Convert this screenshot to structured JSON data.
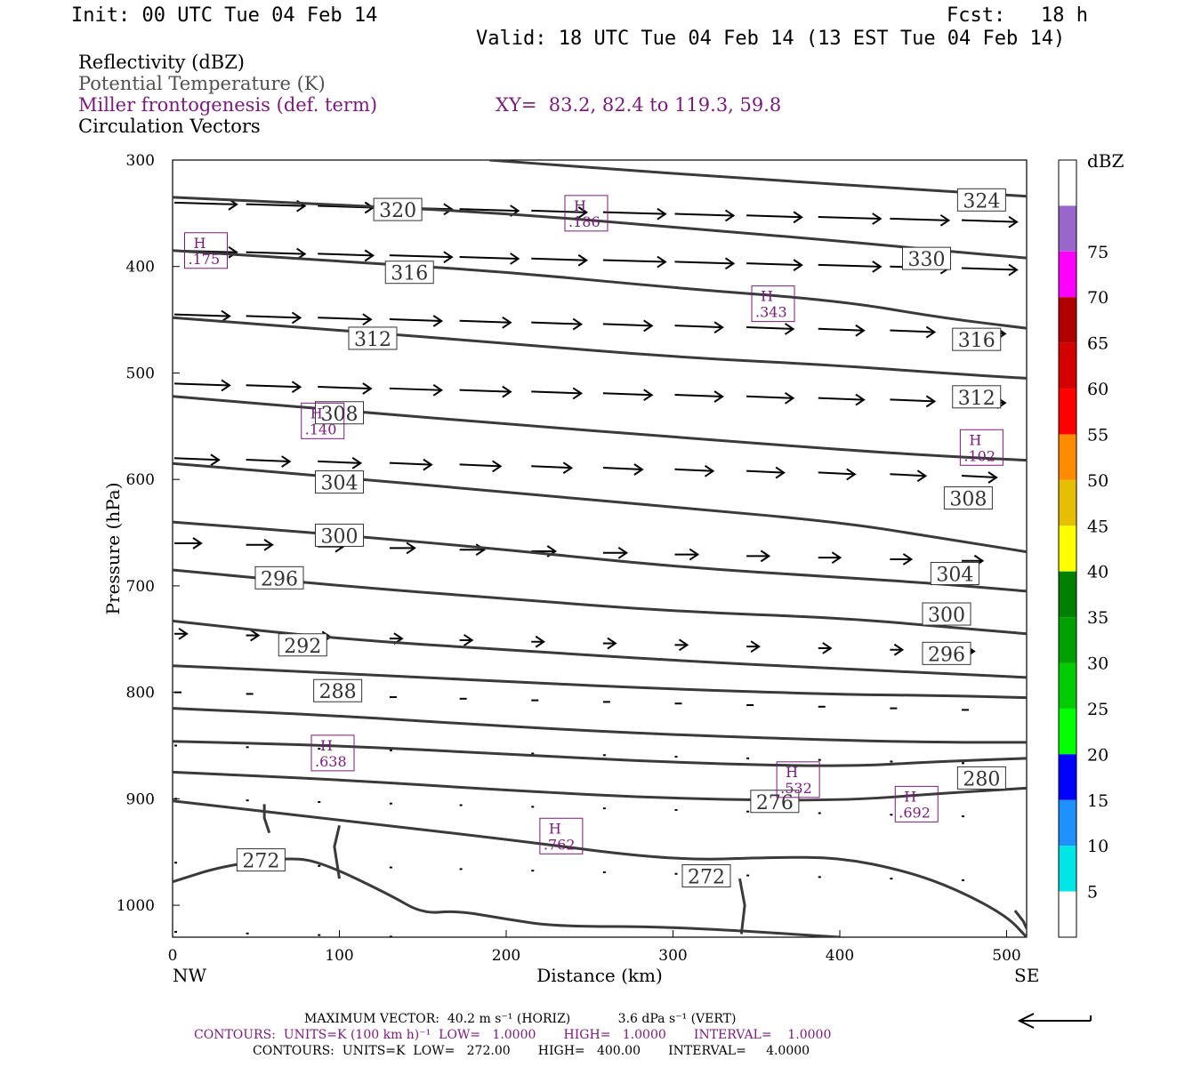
{
  "header": {
    "init": "Init: 00 UTC Tue 04 Feb 14",
    "fcst": "Fcst:   18 h",
    "valid": "Valid: 18 UTC Tue 04 Feb 14 (13 EST Tue 04 Feb 14)"
  },
  "fields": {
    "reflectivity": "Reflectivity (dBZ)",
    "theta": "Potential Temperature (K)",
    "frontogenesis": "Miller frontogenesis (def. term)",
    "xy": "XY=  83.2, 82.4 to 119.3, 59.8",
    "vectors": "Circulation Vectors"
  },
  "colors": {
    "theta_contour": "#3a3a3a",
    "frontogenesis": "#7a1a7a",
    "vector": "#000000"
  },
  "chart_data": {
    "type": "line",
    "xlabel": "Distance (km)",
    "ylabel": "Pressure (hPa)",
    "xlim": [
      0,
      512
    ],
    "ylim": [
      1030,
      300
    ],
    "y_scale": "linear",
    "x_ticks": [
      0,
      100,
      200,
      300,
      400,
      500
    ],
    "y_ticks": [
      300,
      400,
      500,
      600,
      700,
      800,
      900,
      1000
    ],
    "x_end_labels": {
      "left": "NW",
      "right": "SE"
    },
    "theta_contours": [
      {
        "value": 324,
        "points": [
          [
            190,
            300
          ],
          [
            250,
            307
          ],
          [
            350,
            318
          ],
          [
            450,
            328
          ],
          [
            512,
            334
          ]
        ],
        "labels": [
          [
            485,
            337
          ]
        ]
      },
      {
        "value": 320,
        "points": [
          [
            0,
            335
          ],
          [
            100,
            342
          ],
          [
            200,
            350
          ],
          [
            300,
            363
          ],
          [
            400,
            376
          ],
          [
            460,
            385
          ],
          [
            512,
            392
          ]
        ],
        "labels": [
          [
            135,
            346
          ]
        ]
      },
      {
        "value": 330,
        "points": [
          [
            0,
            385
          ],
          [
            100,
            395
          ],
          [
            200,
            405
          ],
          [
            300,
            420
          ],
          [
            400,
            432
          ],
          [
            460,
            448
          ],
          [
            512,
            458
          ]
        ],
        "labels": [
          [
            452,
            392
          ]
        ]
      },
      {
        "value": 316,
        "points": [
          [
            0,
            448
          ],
          [
            100,
            460
          ],
          [
            200,
            472
          ],
          [
            300,
            485
          ],
          [
            400,
            493
          ],
          [
            460,
            500
          ],
          [
            512,
            505
          ]
        ],
        "labels": [
          [
            142,
            405
          ],
          [
            482,
            468
          ]
        ]
      },
      {
        "value": 312,
        "points": [
          [
            0,
            522
          ],
          [
            100,
            535
          ],
          [
            200,
            548
          ],
          [
            300,
            560
          ],
          [
            400,
            572
          ],
          [
            460,
            578
          ],
          [
            512,
            582
          ]
        ],
        "labels": [
          [
            120,
            467
          ],
          [
            482,
            522
          ]
        ]
      },
      {
        "value": 308,
        "points": [
          [
            0,
            585
          ],
          [
            100,
            598
          ],
          [
            200,
            612
          ],
          [
            300,
            626
          ],
          [
            400,
            640
          ],
          [
            460,
            655
          ],
          [
            512,
            668
          ]
        ],
        "labels": [
          [
            100,
            537
          ],
          [
            477,
            617
          ]
        ]
      },
      {
        "value": 304,
        "points": [
          [
            0,
            640
          ],
          [
            100,
            652
          ],
          [
            200,
            666
          ],
          [
            300,
            682
          ],
          [
            400,
            692
          ],
          [
            460,
            698
          ],
          [
            512,
            705
          ]
        ],
        "labels": [
          [
            100,
            602
          ],
          [
            469,
            688
          ]
        ]
      },
      {
        "value": 300,
        "points": [
          [
            0,
            685
          ],
          [
            100,
            700
          ],
          [
            200,
            712
          ],
          [
            300,
            724
          ],
          [
            400,
            730
          ],
          [
            460,
            738
          ],
          [
            512,
            745
          ]
        ],
        "labels": [
          [
            100,
            652
          ],
          [
            464,
            726
          ]
        ]
      },
      {
        "value": 296,
        "points": [
          [
            0,
            733
          ],
          [
            100,
            750
          ],
          [
            200,
            760
          ],
          [
            300,
            770
          ],
          [
            400,
            778
          ],
          [
            460,
            782
          ],
          [
            512,
            786
          ]
        ],
        "labels": [
          [
            64,
            692
          ],
          [
            464,
            763
          ]
        ]
      },
      {
        "value": 292,
        "points": [
          [
            0,
            775
          ],
          [
            100,
            782
          ],
          [
            200,
            790
          ],
          [
            300,
            797
          ],
          [
            400,
            802
          ],
          [
            460,
            803
          ],
          [
            512,
            805
          ]
        ],
        "labels": [
          [
            78,
            755
          ]
        ]
      },
      {
        "value": 288,
        "points": [
          [
            0,
            815
          ],
          [
            100,
            822
          ],
          [
            200,
            832
          ],
          [
            300,
            840
          ],
          [
            400,
            845
          ],
          [
            460,
            847
          ],
          [
            512,
            847
          ]
        ],
        "labels": [
          [
            99,
            798
          ]
        ]
      },
      {
        "value": 284,
        "points": [
          [
            0,
            846
          ],
          [
            100,
            850
          ],
          [
            200,
            858
          ],
          [
            300,
            866
          ],
          [
            400,
            870
          ],
          [
            460,
            865
          ],
          [
            512,
            862
          ]
        ],
        "labels": []
      },
      {
        "value": 280,
        "points": [
          [
            0,
            875
          ],
          [
            100,
            882
          ],
          [
            200,
            892
          ],
          [
            300,
            900
          ],
          [
            400,
            902
          ],
          [
            460,
            895
          ],
          [
            512,
            890
          ]
        ],
        "labels": [
          [
            485,
            880
          ]
        ]
      },
      {
        "value": 276,
        "points": [
          [
            0,
            902
          ],
          [
            100,
            920
          ],
          [
            200,
            938
          ],
          [
            300,
            958
          ],
          [
            360,
            955
          ],
          [
            400,
            955
          ],
          [
            440,
            968
          ],
          [
            470,
            985
          ],
          [
            500,
            1010
          ],
          [
            512,
            1030
          ]
        ],
        "labels": [
          [
            361,
            902
          ]
        ]
      },
      {
        "value": 272,
        "points": [
          [
            0,
            978
          ],
          [
            30,
            963
          ],
          [
            70,
            955
          ],
          [
            90,
            960
          ],
          [
            130,
            990
          ],
          [
            150,
            1008
          ],
          [
            170,
            1005
          ],
          [
            200,
            1013
          ],
          [
            230,
            1020
          ],
          [
            300,
            1020
          ],
          [
            400,
            1030
          ]
        ],
        "labels": [
          [
            53,
            957
          ],
          [
            320,
            972
          ]
        ]
      }
    ],
    "frontogenesis_highs": [
      {
        "x": 20,
        "p": 385,
        "label": "H",
        "value": ".175"
      },
      {
        "x": 248,
        "p": 350,
        "label": "H",
        "value": ".186"
      },
      {
        "x": 360,
        "p": 435,
        "label": "H",
        "value": ".343"
      },
      {
        "x": 90,
        "p": 545,
        "label": "H",
        "value": ".140"
      },
      {
        "x": 485,
        "p": 570,
        "label": "H",
        "value": ".102"
      },
      {
        "x": 96,
        "p": 857,
        "label": "H",
        "value": ".638"
      },
      {
        "x": 375,
        "p": 882,
        "label": "H",
        "value": ".532"
      },
      {
        "x": 446,
        "p": 905,
        "label": "H",
        "value": ".692"
      },
      {
        "x": 233,
        "p": 935,
        "label": "H",
        "value": ".762"
      }
    ],
    "colorbar": {
      "title": "dBZ",
      "levels": [
        5,
        10,
        15,
        20,
        25,
        30,
        35,
        40,
        45,
        50,
        55,
        60,
        65,
        70,
        75
      ],
      "colors": [
        "#ffffff",
        "#00e5e5",
        "#1e90ff",
        "#0000ff",
        "#00ff00",
        "#00cc00",
        "#00a000",
        "#008000",
        "#ffff00",
        "#e6c000",
        "#ff8c00",
        "#ff0000",
        "#d40000",
        "#b00000",
        "#ff00ff",
        "#9966cc",
        "#ffffff"
      ]
    }
  },
  "footer": {
    "max_vector": "MAXIMUM VECTOR:  40.2 m s⁻¹ (HORIZ)            3.6 dPa s⁻¹ (VERT)",
    "contours_fronto": "CONTOURS:  UNITS=K (100 km h)⁻¹  LOW=   1.0000       HIGH=   1.0000       INTERVAL=    1.0000",
    "contours_theta": "CONTOURS:  UNITS=K  LOW=   272.00       HIGH=   400.00       INTERVAL=     4.0000"
  }
}
